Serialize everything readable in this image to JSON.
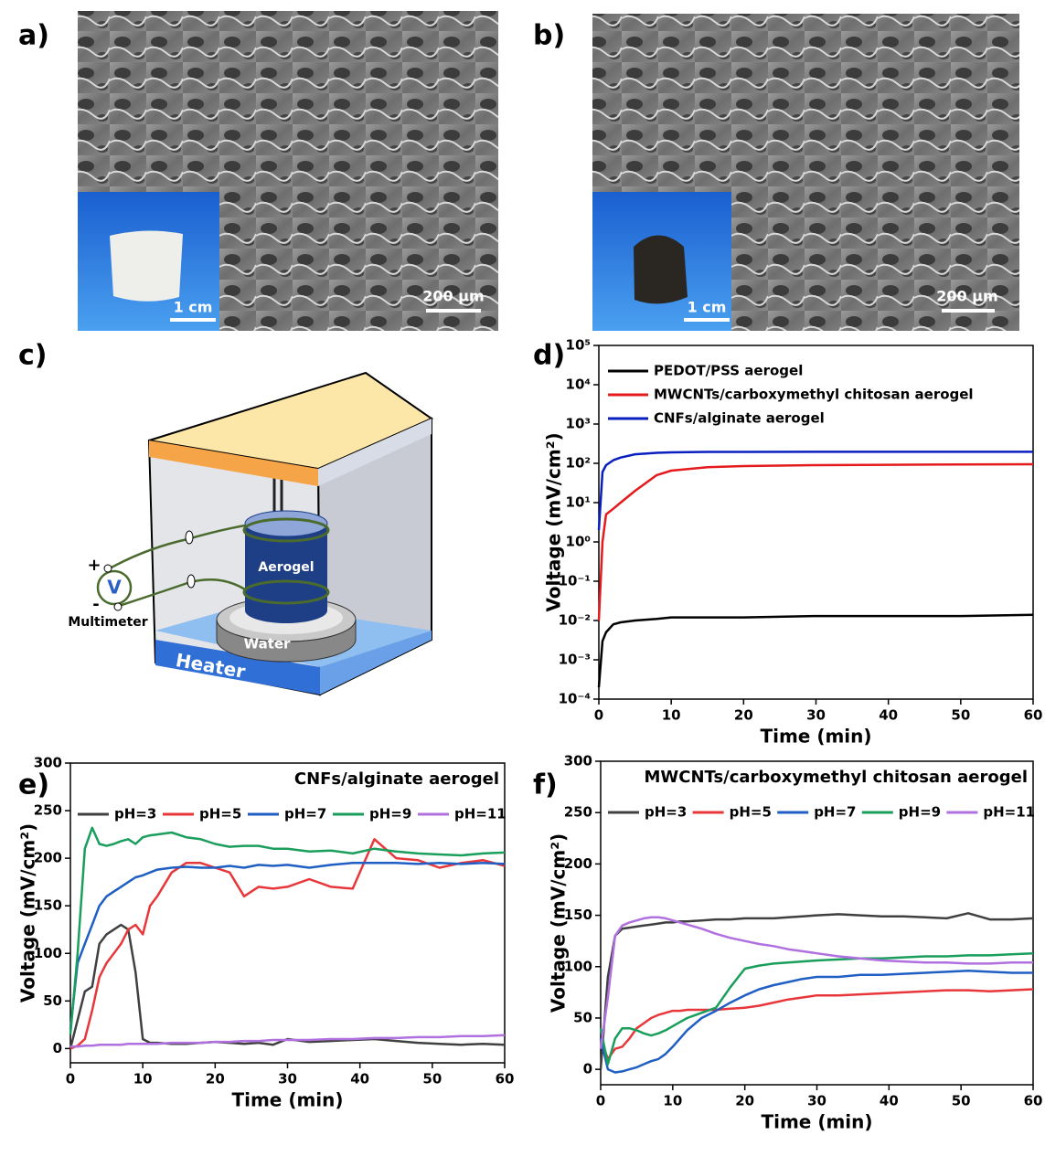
{
  "panels": {
    "a": {
      "label": "a)",
      "inset_scale": "1 cm",
      "scale": "200 μm"
    },
    "b": {
      "label": "b)",
      "inset_scale": "1 cm",
      "scale": "200 μm"
    },
    "c": {
      "label": "c)",
      "aerogel": "Aerogel",
      "water": "Water",
      "heater": "Heater",
      "multimeter": "Multimeter",
      "voltmeter": "V",
      "plus": "+",
      "minus": "-"
    }
  },
  "chart_data": [
    {
      "type": "line",
      "panel_label": "d)",
      "xlabel": "Time (min)",
      "ylabel": "Voltage (mV/cm²)",
      "yscale": "log",
      "legend": "upper left",
      "xlim": [
        0,
        60
      ],
      "xticks": [
        0,
        10,
        20,
        30,
        40,
        50,
        60
      ],
      "ylim": [
        0.0001,
        100000
      ],
      "yticks": [
        {
          "value": 0.0001,
          "label": "10⁻⁴"
        },
        {
          "value": 0.001,
          "label": "10⁻³"
        },
        {
          "value": 0.01,
          "label": "10⁻²"
        },
        {
          "value": 0.1,
          "label": "10⁻¹"
        },
        {
          "value": 1,
          "label": "10⁰"
        },
        {
          "value": 10,
          "label": "10¹"
        },
        {
          "value": 100,
          "label": "10²"
        },
        {
          "value": 1000,
          "label": "10³"
        },
        {
          "value": 10000,
          "label": "10⁴"
        },
        {
          "value": 100000,
          "label": "10⁵"
        }
      ],
      "x": [
        0,
        0.5,
        1,
        2,
        3,
        5,
        8,
        10,
        15,
        20,
        30,
        40,
        50,
        60
      ],
      "series": [
        {
          "name": "PEDOT/PSS aerogel",
          "color": "#000000",
          "values": [
            0.0002,
            0.003,
            0.005,
            0.008,
            0.009,
            0.01,
            0.011,
            0.012,
            0.012,
            0.012,
            0.013,
            0.013,
            0.013,
            0.014
          ]
        },
        {
          "name": "MWCNTs/carboxymethyl chitosan aerogel",
          "color": "#e41a1c",
          "values": [
            0.01,
            1,
            5,
            7,
            10,
            20,
            50,
            65,
            80,
            85,
            90,
            92,
            94,
            95
          ]
        },
        {
          "name": "CNFs/alginate aerogel",
          "color": "#0a1fbf",
          "values": [
            2,
            60,
            90,
            120,
            140,
            170,
            185,
            190,
            195,
            195,
            196,
            196,
            196,
            196
          ]
        }
      ]
    },
    {
      "type": "line",
      "panel_label": "e)",
      "title": "CNFs/alginate aerogel",
      "xlabel": "Time (min)",
      "ylabel": "Voltage (mV/cm²)",
      "legend": "upper center",
      "xlim": [
        0,
        60
      ],
      "xticks": [
        0,
        10,
        20,
        30,
        40,
        50,
        60
      ],
      "ylim": [
        -15,
        300
      ],
      "yticks": [
        0,
        50,
        100,
        150,
        200,
        250,
        300
      ],
      "x": [
        0,
        1,
        2,
        3,
        4,
        5,
        6,
        7,
        8,
        9,
        10,
        11,
        12,
        14,
        16,
        18,
        20,
        22,
        24,
        26,
        28,
        30,
        33,
        36,
        39,
        42,
        45,
        48,
        51,
        54,
        57,
        60
      ],
      "series": [
        {
          "name": "pH=3",
          "color": "#404040",
          "values": [
            0,
            30,
            60,
            65,
            110,
            120,
            125,
            130,
            125,
            80,
            10,
            6,
            6,
            5,
            5,
            6,
            7,
            6,
            5,
            6,
            4,
            10,
            7,
            8,
            9,
            10,
            8,
            6,
            5,
            4,
            5,
            4
          ]
        },
        {
          "name": "pH=5",
          "color": "#e8373a",
          "values": [
            0,
            3,
            10,
            40,
            75,
            90,
            100,
            110,
            125,
            130,
            120,
            150,
            160,
            185,
            195,
            195,
            190,
            185,
            160,
            170,
            168,
            170,
            178,
            170,
            168,
            220,
            200,
            198,
            190,
            195,
            198,
            192
          ]
        },
        {
          "name": "pH=7",
          "color": "#1f5fc4",
          "values": [
            20,
            90,
            110,
            130,
            150,
            160,
            165,
            170,
            175,
            180,
            182,
            185,
            188,
            190,
            191,
            190,
            190,
            192,
            190,
            193,
            192,
            193,
            190,
            193,
            195,
            195,
            195,
            194,
            195,
            194,
            195,
            194
          ]
        },
        {
          "name": "pH=9",
          "color": "#1a9e5c",
          "values": [
            15,
            100,
            210,
            232,
            215,
            213,
            215,
            218,
            220,
            215,
            222,
            224,
            225,
            227,
            222,
            220,
            215,
            212,
            213,
            213,
            210,
            210,
            207,
            208,
            205,
            210,
            207,
            205,
            204,
            203,
            205,
            206
          ]
        },
        {
          "name": "pH=11",
          "color": "#b070e0",
          "values": [
            2,
            2,
            3,
            3,
            4,
            4,
            4,
            4,
            5,
            5,
            5,
            5,
            5,
            6,
            6,
            6,
            7,
            7,
            8,
            8,
            9,
            9,
            9,
            10,
            10,
            11,
            11,
            12,
            12,
            13,
            13,
            14
          ]
        }
      ]
    },
    {
      "type": "line",
      "panel_label": "f)",
      "title": "MWCNTs/carboxymethyl chitosan aerogel",
      "xlabel": "Time (min)",
      "ylabel": "Voltage (mV/cm²)",
      "legend": "upper center",
      "xlim": [
        0,
        60
      ],
      "xticks": [
        0,
        10,
        20,
        30,
        40,
        50,
        60
      ],
      "ylim": [
        -15,
        300
      ],
      "yticks": [
        0,
        50,
        100,
        150,
        200,
        250,
        300
      ],
      "x": [
        0,
        1,
        2,
        3,
        4,
        5,
        6,
        7,
        8,
        9,
        10,
        11,
        12,
        14,
        16,
        18,
        20,
        22,
        24,
        26,
        28,
        30,
        33,
        36,
        39,
        42,
        45,
        48,
        51,
        54,
        57,
        60
      ],
      "series": [
        {
          "name": "pH=3",
          "color": "#404040",
          "values": [
            0,
            90,
            130,
            137,
            138,
            139,
            140,
            141,
            142,
            143,
            143,
            144,
            144,
            145,
            146,
            146,
            147,
            147,
            147,
            148,
            149,
            150,
            151,
            150,
            149,
            149,
            148,
            147,
            152,
            146,
            146,
            147
          ]
        },
        {
          "name": "pH=5",
          "color": "#e8373a",
          "values": [
            30,
            10,
            20,
            22,
            30,
            40,
            45,
            50,
            53,
            55,
            57,
            57,
            58,
            58,
            58,
            59,
            60,
            62,
            65,
            68,
            70,
            72,
            72,
            73,
            74,
            75,
            76,
            77,
            77,
            76,
            77,
            78
          ]
        },
        {
          "name": "pH=7",
          "color": "#1f5fc4",
          "values": [
            30,
            0,
            -3,
            -2,
            0,
            2,
            5,
            8,
            10,
            15,
            22,
            30,
            38,
            50,
            57,
            65,
            72,
            78,
            82,
            85,
            88,
            90,
            90,
            92,
            92,
            93,
            94,
            95,
            96,
            95,
            94,
            94
          ]
        },
        {
          "name": "pH=9",
          "color": "#1a9e5c",
          "values": [
            40,
            5,
            30,
            40,
            40,
            38,
            35,
            33,
            35,
            38,
            42,
            46,
            50,
            55,
            60,
            80,
            98,
            101,
            103,
            104,
            105,
            106,
            107,
            108,
            108,
            109,
            110,
            110,
            111,
            111,
            112,
            113
          ]
        },
        {
          "name": "pH=11",
          "color": "#b070e0",
          "values": [
            20,
            70,
            130,
            140,
            143,
            145,
            147,
            148,
            148,
            147,
            145,
            143,
            141,
            137,
            132,
            128,
            125,
            122,
            120,
            117,
            115,
            113,
            110,
            108,
            106,
            105,
            104,
            104,
            103,
            103,
            104,
            104
          ]
        }
      ]
    }
  ]
}
